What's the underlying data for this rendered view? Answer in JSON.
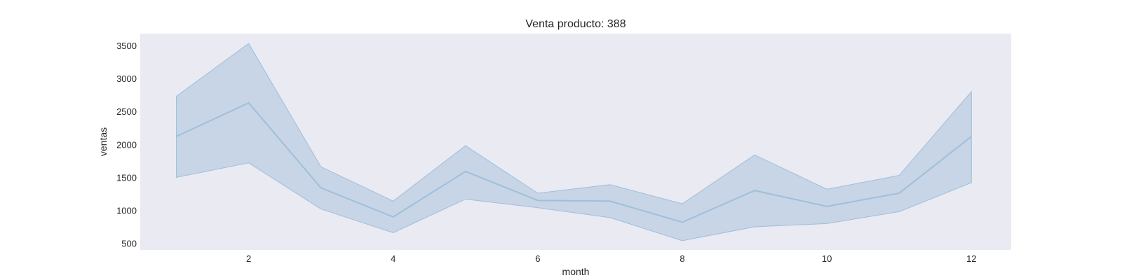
{
  "chart_data": {
    "type": "line",
    "title": "Venta producto: 388",
    "xlabel": "month",
    "ylabel": "ventas",
    "xlim": [
      0.5,
      12.55
    ],
    "ylim": [
      400,
      3680
    ],
    "xticks": [
      2,
      4,
      6,
      8,
      10,
      12
    ],
    "yticks": [
      500,
      1000,
      1500,
      2000,
      2500,
      3000,
      3500
    ],
    "grid": false,
    "legend": "none",
    "colors": {
      "plot_background": "#eaeaf2",
      "line": "#9fbfdb",
      "band_fill": "#a9c3dc",
      "band_fill_opacity": 0.55
    },
    "x": [
      1,
      2,
      3,
      4,
      5,
      6,
      7,
      8,
      9,
      10,
      11,
      12
    ],
    "series": [
      {
        "values": [
          2120,
          2630,
          1340,
          900,
          1590,
          1150,
          1140,
          820,
          1300,
          1060,
          1260,
          2120
        ],
        "lower": [
          1500,
          1720,
          1020,
          660,
          1170,
          1040,
          890,
          540,
          750,
          800,
          980,
          1420
        ],
        "upper": [
          2730,
          3530,
          1660,
          1140,
          1980,
          1260,
          1390,
          1100,
          1840,
          1320,
          1530,
          2800
        ]
      }
    ]
  }
}
